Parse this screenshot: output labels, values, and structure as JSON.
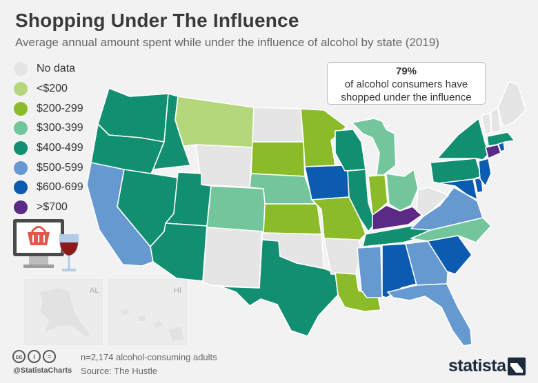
{
  "header": {
    "title": "Shopping Under The Influence",
    "subtitle": "Average annual amount spent while under the influence of alcohol by state (2019)"
  },
  "legend": [
    {
      "label": "No data",
      "color": "#e5e5e5"
    },
    {
      "label": "<$200",
      "color": "#b5d77b"
    },
    {
      "label": "$200-299",
      "color": "#8cbb2a"
    },
    {
      "label": "$300-399",
      "color": "#73c59b"
    },
    {
      "label": "$400-499",
      "color": "#128f71"
    },
    {
      "label": "$500-599",
      "color": "#6699cf"
    },
    {
      "label": "$600-699",
      "color": "#0b5bb0"
    },
    {
      "label": ">$700",
      "color": "#5b2a86"
    }
  ],
  "callout": {
    "stat": "79%",
    "line1": "of alcohol consumers have",
    "line2": "shopped under the influence"
  },
  "insets": {
    "alaska": "AL",
    "hawaii": "HI"
  },
  "footer": {
    "note": "n=2,174 alcohol-consuming adults",
    "source": "Source: The Hustle",
    "handle": "@StatistaCharts",
    "brand": "statista"
  },
  "colors": {
    "nodata": "#e5e5e5",
    "lt200": "#b5d77b",
    "r200": "#8cbb2a",
    "r300": "#73c59b",
    "r400": "#128f71",
    "r500": "#6699cf",
    "r600": "#0b5bb0",
    "gt700": "#5b2a86",
    "border": "#ffffff",
    "inset": "#ececec"
  },
  "map_data": {
    "Washington": "$400-499",
    "Oregon": "$400-499",
    "California": "$500-599",
    "Idaho": "$400-499",
    "Nevada": "$400-499",
    "Montana": "<$200",
    "Wyoming": "No data",
    "Utah": "$400-499",
    "Arizona": "$400-499",
    "Colorado": "$300-399",
    "New Mexico": "No data",
    "North Dakota": "No data",
    "South Dakota": "$200-299",
    "Nebraska": "$300-399",
    "Kansas": "$200-299",
    "Oklahoma": "No data",
    "Texas": "$400-499",
    "Minnesota": "$200-299",
    "Iowa": "$600-699",
    "Missouri": "$200-299",
    "Arkansas": "No data",
    "Louisiana": "$200-299",
    "Wisconsin": "$400-499",
    "Illinois": "$400-499",
    "Michigan": "$300-399",
    "Indiana": "$200-299",
    "Ohio": "$300-399",
    "Kentucky": ">$700",
    "Tennessee": "$400-499",
    "Mississippi": "$500-599",
    "Alabama": "$600-699",
    "Georgia": "$500-599",
    "Florida": "$500-599",
    "South Carolina": "$600-699",
    "North Carolina": "$300-399",
    "Virginia": "$500-599",
    "West Virginia": "No data",
    "Maryland": "$600-699",
    "Delaware": "$600-699",
    "Pennsylvania": "$400-499",
    "New Jersey": "$600-699",
    "New York": "$400-499",
    "Connecticut": ">$700",
    "Rhode Island": "$600-699",
    "Massachusetts": "$400-499",
    "Vermont": "No data",
    "New Hampshire": "No data",
    "Maine": "No data"
  }
}
